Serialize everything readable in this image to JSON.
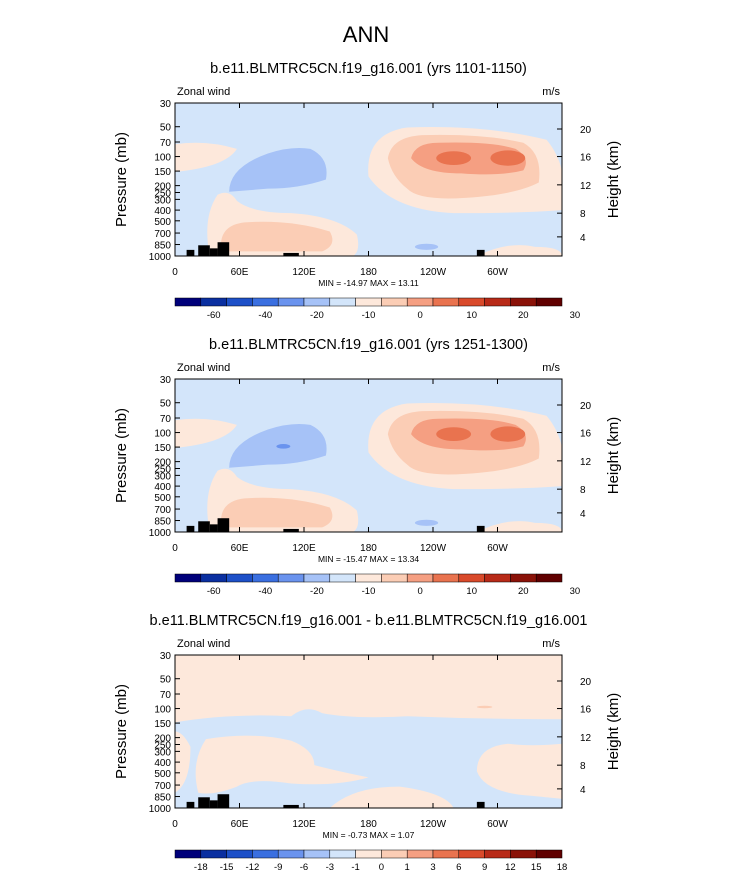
{
  "main_title": "ANN",
  "palette": {
    "abs": [
      "#00007a",
      "#0a2fa0",
      "#1d50c8",
      "#3a6fe0",
      "#6a93ee",
      "#a6c2f7",
      "#d3e5fa",
      "#fde8db",
      "#fbcdb5",
      "#f59f82",
      "#e9734f",
      "#d94a2b",
      "#b82a18",
      "#8a1208",
      "#600000"
    ],
    "diff": [
      "#00007a",
      "#0a2fa0",
      "#1d50c8",
      "#3a6fe0",
      "#6a93ee",
      "#a6c2f7",
      "#d3e5fa",
      "#fde8db",
      "#fbcdb5",
      "#f59f82",
      "#e9734f",
      "#d94a2b",
      "#b82a18",
      "#8a1208",
      "#600000"
    ]
  },
  "chart_data": [
    {
      "type": "heatmap",
      "title": "b.e11.BLMTRC5CN.f19_g16.001 (yrs 1101-1150)",
      "left_label": "Zonal wind",
      "right_label": "m/s",
      "ylabel": "Pressure (mb)",
      "y2label": "Height (km)",
      "x_ticks": [
        "0",
        "60E",
        "120E",
        "180",
        "120W",
        "60W"
      ],
      "y_ticks": [
        "30",
        "50",
        "70",
        "100",
        "150",
        "200",
        "250",
        "300",
        "400",
        "500",
        "700",
        "850",
        "1000"
      ],
      "y2_ticks": [
        "20",
        "16",
        "12",
        "8",
        "4"
      ],
      "stats": "MIN = -14.97  MAX =  13.11",
      "colorbar_labels": [
        "-60",
        "-40",
        "-20",
        "-10",
        "0",
        "10",
        "20",
        "30"
      ],
      "min": -14.97,
      "max": 13.11
    },
    {
      "type": "heatmap",
      "title": "b.e11.BLMTRC5CN.f19_g16.001 (yrs 1251-1300)",
      "left_label": "Zonal wind",
      "right_label": "m/s",
      "ylabel": "Pressure (mb)",
      "y2label": "Height (km)",
      "x_ticks": [
        "0",
        "60E",
        "120E",
        "180",
        "120W",
        "60W"
      ],
      "y_ticks": [
        "30",
        "50",
        "70",
        "100",
        "150",
        "200",
        "250",
        "300",
        "400",
        "500",
        "700",
        "850",
        "1000"
      ],
      "y2_ticks": [
        "20",
        "16",
        "12",
        "8",
        "4"
      ],
      "stats": "MIN = -15.47  MAX =  13.34",
      "colorbar_labels": [
        "-60",
        "-40",
        "-20",
        "-10",
        "0",
        "10",
        "20",
        "30"
      ],
      "min": -15.47,
      "max": 13.34
    },
    {
      "type": "heatmap",
      "title": "b.e11.BLMTRC5CN.f19_g16.001 - b.e11.BLMTRC5CN.f19_g16.001",
      "left_label": "Zonal wind",
      "right_label": "m/s",
      "ylabel": "Pressure (mb)",
      "y2label": "Height (km)",
      "x_ticks": [
        "0",
        "60E",
        "120E",
        "180",
        "120W",
        "60W"
      ],
      "y_ticks": [
        "30",
        "50",
        "70",
        "100",
        "150",
        "200",
        "250",
        "300",
        "400",
        "500",
        "700",
        "850",
        "1000"
      ],
      "y2_ticks": [
        "20",
        "16",
        "12",
        "8",
        "4"
      ],
      "stats": "MIN = -0.73  MAX =  1.07",
      "colorbar_labels": [
        "-18",
        "-15",
        "-12",
        "-9",
        "-6",
        "-3",
        "-1",
        "0",
        "1",
        "3",
        "6",
        "9",
        "12",
        "15",
        "18"
      ],
      "min": -0.73,
      "max": 1.07
    }
  ]
}
